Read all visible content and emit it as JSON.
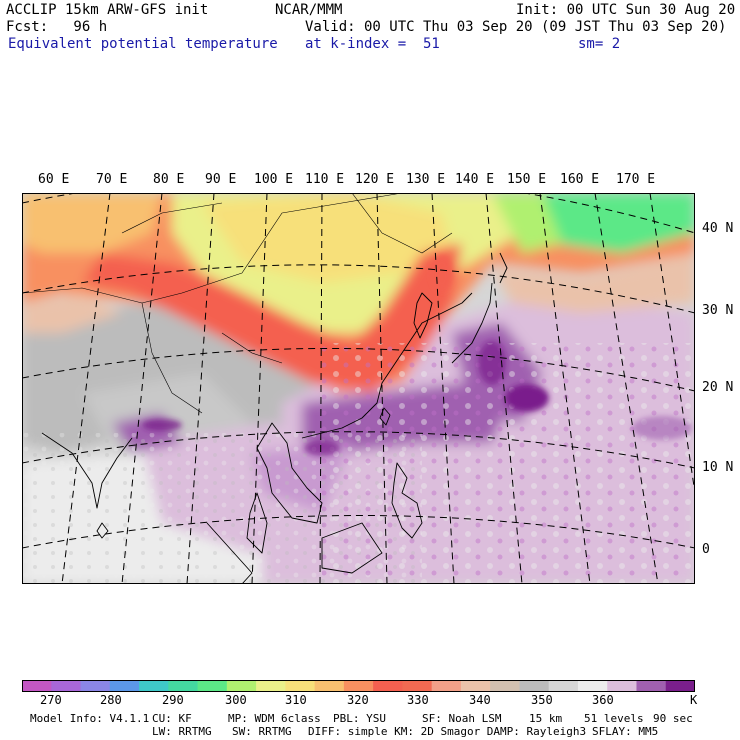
{
  "header": {
    "line1_left": "ACCLIP 15km ARW-GFS init",
    "line1_center": "NCAR/MMM",
    "line1_right": "Init: 00 UTC Sun 30 Aug 20",
    "line2_left": "Fcst:   96 h",
    "line2_right": "Valid: 00 UTC Thu 03 Sep 20 (09 JST Thu 03 Sep 20)",
    "line3_left": "Equivalent potential temperature",
    "line3_center": "at k-index =  51",
    "line3_right": "sm= 2"
  },
  "longitude_labels": [
    "60 E",
    "70 E",
    "80 E",
    "90 E",
    "100 E",
    "110 E",
    "120 E",
    "130 E",
    "140 E",
    "150 E",
    "160 E",
    "170 E"
  ],
  "latitude_labels": [
    "40 N",
    "30 N",
    "20 N",
    "10 N",
    "0"
  ],
  "colorbar": {
    "colors": [
      "#c457c4",
      "#a867d8",
      "#8b86e6",
      "#5c98e8",
      "#3fc8c8",
      "#44d8a0",
      "#5ce887",
      "#b0f070",
      "#eaf08a",
      "#f7e07a",
      "#f8c070",
      "#f89060",
      "#f46050",
      "#f26a52",
      "#f2a088",
      "#eac2aa",
      "#d2c0b0",
      "#bcbcbc",
      "#d6d6d6",
      "#ececec",
      "#dcbedc",
      "#a060b0",
      "#7a1f8c"
    ],
    "tick_labels": [
      "270",
      "280",
      "290",
      "300",
      "310",
      "320",
      "330",
      "340",
      "350",
      "360",
      "K"
    ]
  },
  "model_info": {
    "line1": [
      "Model Info: V4.1.1",
      "CU: KF",
      "MP: WDM 6class",
      "PBL: YSU",
      "SF: Noah LSM",
      "15 km",
      "51 levels",
      "90 sec"
    ],
    "line2": [
      "LW: RRTMG",
      "SW: RRTMG",
      "DIFF: simple KM: 2D Smagor DAMP: Rayleigh3",
      "SFLAY: MM5"
    ]
  }
}
